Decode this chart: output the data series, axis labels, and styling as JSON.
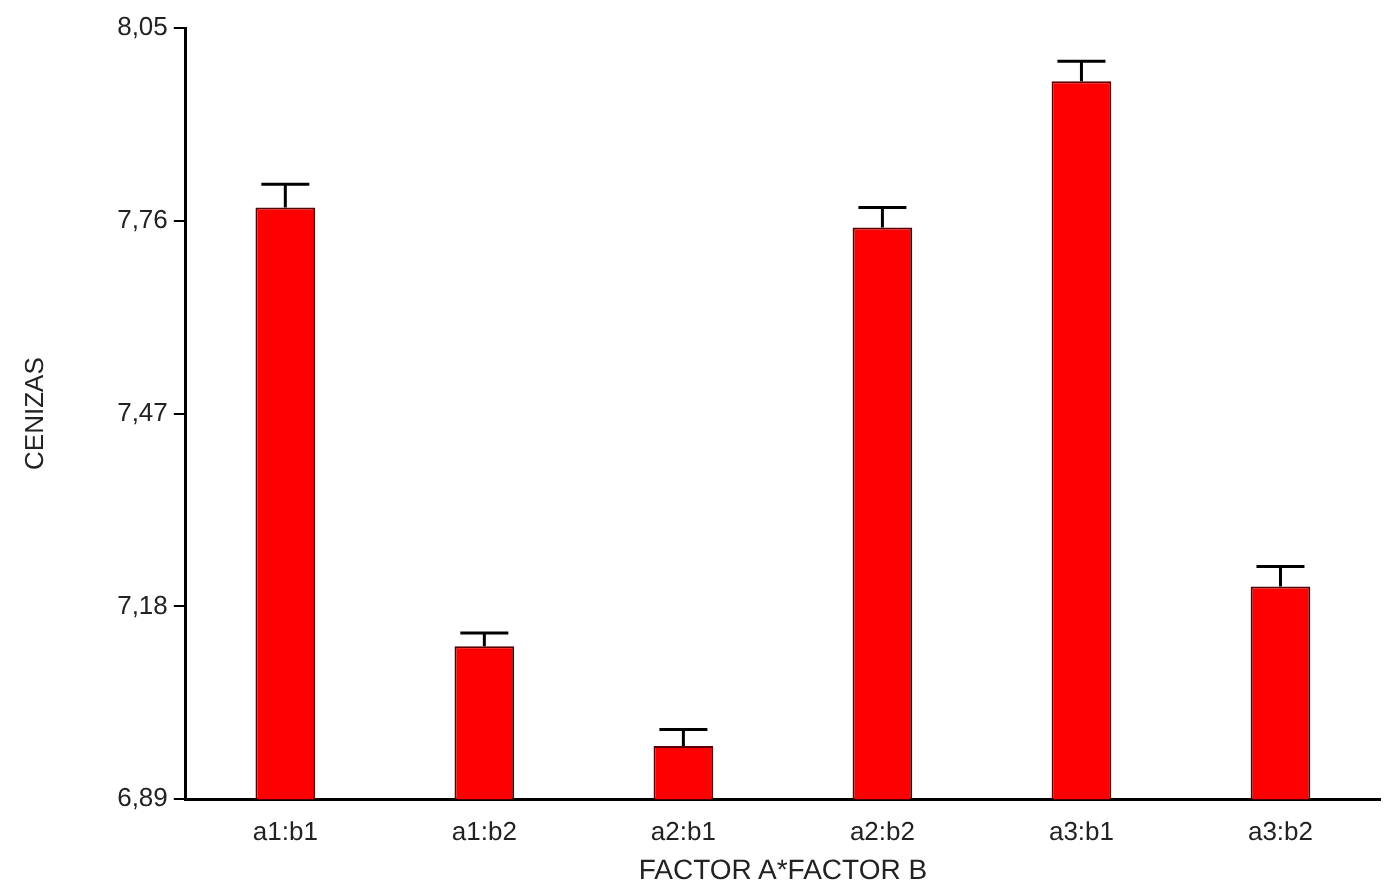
{
  "chart_data": {
    "type": "bar",
    "xlabel": "FACTOR A*FACTOR B",
    "ylabel": "CENIZAS",
    "categories": [
      "a1:b1",
      "a1:b2",
      "a2:b1",
      "a2:b2",
      "a3:b1",
      "a3:b2"
    ],
    "values": [
      7.78,
      7.12,
      6.97,
      7.75,
      7.97,
      7.21
    ],
    "errors": [
      0.035,
      0.02,
      0.025,
      0.03,
      0.03,
      0.03
    ],
    "color": "#ff0000",
    "ylim": [
      6.89,
      8.05
    ],
    "yticks": [
      {
        "value": 6.89,
        "label": "6,89"
      },
      {
        "value": 7.18,
        "label": "7,18"
      },
      {
        "value": 7.47,
        "label": "7,47"
      },
      {
        "value": 7.76,
        "label": "7,76"
      },
      {
        "value": 8.05,
        "label": "8,05"
      }
    ],
    "grid": false,
    "legend": false
  }
}
